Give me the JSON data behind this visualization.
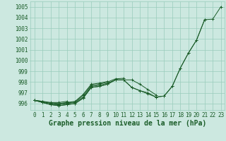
{
  "title": "Graphe pression niveau de la mer (hPa)",
  "x_hours": [
    0,
    1,
    2,
    3,
    4,
    5,
    6,
    7,
    8,
    9,
    10,
    11,
    12,
    13,
    14,
    15,
    16,
    17,
    18,
    19,
    20,
    21,
    22,
    23
  ],
  "line_main": [
    996.3,
    996.1,
    995.9,
    995.8,
    995.9,
    996.0,
    996.5,
    997.5,
    997.6,
    997.8,
    998.2,
    998.2,
    997.5,
    997.2,
    996.9,
    996.6,
    996.7,
    997.6,
    999.3,
    1000.7,
    1001.9,
    1003.8,
    1003.85,
    1005.0
  ],
  "line1": [
    996.3,
    996.1,
    995.9,
    995.8,
    995.9,
    996.0,
    996.5,
    997.5,
    997.6,
    997.8,
    998.2,
    998.2,
    997.5,
    997.2,
    997.0,
    996.6,
    996.7,
    997.6,
    999.3,
    1000.7,
    1001.9,
    1003.8,
    null,
    null
  ],
  "line2": [
    996.3,
    996.1,
    995.9,
    995.9,
    996.0,
    996.1,
    996.6,
    997.6,
    997.7,
    997.9,
    998.2,
    998.2,
    998.2,
    997.8,
    997.3,
    996.8,
    null,
    null,
    null,
    null,
    null,
    null,
    null,
    null
  ],
  "line3": [
    996.3,
    996.2,
    996.0,
    995.95,
    996.05,
    996.15,
    996.75,
    997.7,
    997.8,
    998.0,
    998.3,
    998.35,
    null,
    null,
    null,
    null,
    null,
    null,
    null,
    null,
    null,
    null,
    null,
    null
  ],
  "line4": [
    996.3,
    996.15,
    996.05,
    996.0,
    996.1,
    996.2,
    996.85,
    997.8,
    997.9,
    998.05,
    null,
    null,
    null,
    null,
    null,
    null,
    null,
    null,
    null,
    null,
    null,
    null,
    null,
    null
  ],
  "line5": [
    996.3,
    996.2,
    996.1,
    996.1,
    996.2,
    null,
    null,
    null,
    null,
    null,
    null,
    null,
    null,
    null,
    null,
    null,
    null,
    null,
    null,
    null,
    null,
    null,
    null,
    null
  ],
  "ylim": [
    995.4,
    1005.5
  ],
  "yticks": [
    996,
    997,
    998,
    999,
    1000,
    1001,
    1002,
    1003,
    1004,
    1005
  ],
  "bg_color": "#cce8e0",
  "grid_color": "#99ccbb",
  "line_color": "#1a5c28",
  "label_color": "#1a5c28",
  "title_color": "#1a5c28",
  "title_fontsize": 7.0,
  "tick_fontsize": 5.5
}
